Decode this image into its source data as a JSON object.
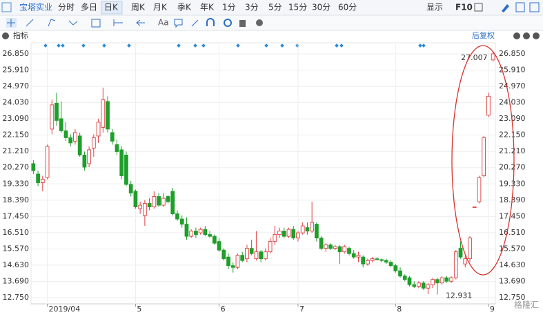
{
  "ui": {
    "stock": "宝塔实业",
    "tabs": [
      "分时",
      "多日",
      "日K",
      "周K",
      "月K",
      "季K",
      "年K",
      "1分",
      "3分",
      "5分",
      "15分",
      "30分",
      "60分"
    ],
    "display": "显示",
    "f10": "F10",
    "indicator": "指标",
    "adjust": "后复权",
    "watermark": "格隆汇"
  },
  "chart_data": {
    "type": "candlestick",
    "categories": [
      null,
      null,
      null,
      "2019/04",
      null,
      null,
      null,
      null,
      null,
      null,
      null,
      null,
      null,
      null,
      null,
      null,
      null,
      null,
      null,
      null,
      null,
      null,
      "5",
      null,
      null,
      null,
      null,
      null,
      null,
      null,
      null,
      null,
      null,
      null,
      null,
      null,
      null,
      null,
      null,
      null,
      "6",
      null,
      null,
      null,
      null,
      null,
      null,
      null,
      null,
      null,
      null,
      null,
      null,
      null,
      null,
      null,
      null,
      "7",
      null,
      null,
      null,
      null,
      null,
      null,
      null,
      null,
      null,
      null,
      null,
      null,
      null,
      null,
      null,
      null,
      null,
      null,
      null,
      null,
      "8",
      null,
      null,
      null,
      null,
      null,
      null,
      null,
      null,
      null,
      null,
      null,
      null,
      null,
      null,
      null,
      null,
      null,
      null,
      null,
      "9",
      null
    ],
    "series": [
      {
        "up_color": "#e03c3c",
        "down_color": "#1e9e2a",
        "open": [
          20.5,
          19.9,
          19.4,
          19.7,
          22.5,
          24.0,
          23.1,
          22.4,
          22.0,
          21.8,
          22.1,
          21.0,
          20.5,
          21.4,
          22.1,
          22.6,
          24.1,
          22.3,
          21.6,
          21.3,
          21.0,
          19.3,
          18.9,
          17.9,
          17.5,
          18.2,
          18.0,
          18.6,
          18.1,
          18.6,
          18.9,
          17.6,
          17.3,
          17.0,
          16.3,
          16.6,
          16.5,
          16.7,
          16.4,
          16.3,
          16.0,
          15.5,
          15.1,
          14.6,
          14.5,
          15.2,
          15.0,
          15.6,
          15.0,
          15.4,
          15.0,
          15.4,
          16.0,
          16.4,
          16.6,
          16.3,
          16.7,
          16.2,
          16.5,
          16.8,
          16.6,
          17.0,
          16.2,
          15.6,
          15.8,
          15.6,
          15.7,
          15.4,
          15.6,
          15.3,
          15.1,
          15.1,
          14.7,
          14.9,
          15.0,
          14.95,
          14.9,
          14.8,
          14.6,
          14.3,
          14.0,
          13.9,
          13.5,
          13.4,
          13.6,
          13.3,
          13.5,
          13.8,
          13.6,
          13.9,
          13.7,
          13.9,
          15.6,
          14.7,
          15.0,
          18.0,
          18.3,
          19.8,
          23.3,
          26.5
        ],
        "high": [
          20.7,
          20.1,
          19.8,
          21.6,
          24.2,
          24.6,
          24.1,
          22.9,
          22.2,
          22.5,
          22.3,
          21.2,
          21.5,
          22.2,
          23.1,
          24.9,
          24.4,
          22.5,
          21.9,
          21.5,
          21.2,
          19.5,
          19.0,
          18.3,
          18.4,
          18.5,
          18.9,
          18.8,
          18.8,
          18.7,
          19.1,
          17.8,
          17.5,
          17.4,
          16.7,
          16.8,
          16.8,
          16.9,
          16.6,
          16.4,
          16.2,
          15.6,
          15.3,
          14.8,
          15.3,
          15.4,
          15.8,
          16.1,
          16.6,
          15.5,
          15.6,
          16.2,
          16.9,
          16.8,
          16.8,
          16.8,
          16.9,
          16.6,
          17.1,
          17.1,
          18.3,
          17.1,
          16.3,
          15.9,
          15.9,
          15.8,
          15.8,
          15.8,
          15.7,
          15.5,
          15.4,
          15.2,
          15.0,
          15.1,
          15.1,
          15.0,
          15.0,
          14.9,
          14.7,
          14.5,
          14.1,
          14.0,
          13.7,
          13.7,
          13.7,
          13.6,
          13.9,
          13.9,
          14.0,
          14.0,
          14.0,
          15.5,
          16.0,
          15.2,
          16.3,
          18.0,
          19.8,
          22.1,
          24.6,
          27.007
        ],
        "low": [
          19.9,
          19.2,
          18.9,
          19.6,
          22.2,
          22.7,
          22.3,
          21.8,
          21.5,
          21.6,
          20.9,
          20.1,
          20.3,
          20.9,
          21.7,
          22.3,
          22.3,
          21.6,
          21.0,
          19.6,
          19.2,
          18.6,
          17.9,
          17.6,
          16.9,
          17.8,
          17.9,
          18.0,
          18.0,
          18.2,
          17.5,
          17.2,
          16.8,
          16.1,
          16.2,
          16.2,
          16.4,
          16.3,
          16.2,
          15.8,
          15.4,
          14.9,
          14.4,
          14.2,
          14.4,
          14.8,
          14.8,
          15.2,
          14.9,
          14.8,
          14.9,
          15.3,
          15.8,
          16.2,
          16.2,
          16.2,
          16.1,
          16.0,
          16.4,
          16.4,
          16.5,
          16.0,
          15.5,
          15.4,
          15.5,
          15.5,
          14.7,
          15.3,
          15.2,
          15.0,
          14.8,
          14.5,
          14.6,
          14.8,
          14.9,
          14.8,
          14.7,
          14.5,
          14.2,
          13.9,
          13.7,
          13.4,
          13.3,
          13.3,
          13.2,
          12.95,
          13.3,
          12.931,
          13.5,
          13.6,
          13.6,
          13.8,
          15.0,
          14.5,
          14.8,
          18.0,
          18.2,
          19.7,
          23.2,
          26.4
        ],
        "close": [
          20.1,
          19.4,
          19.6,
          21.5,
          23.9,
          23.0,
          22.4,
          22.0,
          21.7,
          22.3,
          21.0,
          20.3,
          21.3,
          22.0,
          22.9,
          24.2,
          22.5,
          21.8,
          21.2,
          19.8,
          19.3,
          18.8,
          18.0,
          18.1,
          18.2,
          18.0,
          18.6,
          18.1,
          18.5,
          18.3,
          17.6,
          17.3,
          17.0,
          16.3,
          16.6,
          16.4,
          16.7,
          16.4,
          16.3,
          15.9,
          15.5,
          15.0,
          14.6,
          14.5,
          15.2,
          14.9,
          15.6,
          15.3,
          15.4,
          15.0,
          15.4,
          16.0,
          16.4,
          16.6,
          16.3,
          16.7,
          16.2,
          16.5,
          16.9,
          16.6,
          17.1,
          16.2,
          15.6,
          15.8,
          15.6,
          15.7,
          15.4,
          15.7,
          15.3,
          15.1,
          15.2,
          14.7,
          14.9,
          15.0,
          14.95,
          14.9,
          14.8,
          14.6,
          14.3,
          14.0,
          13.8,
          13.5,
          13.4,
          13.6,
          13.3,
          13.5,
          13.8,
          13.6,
          13.9,
          13.7,
          13.9,
          15.4,
          15.1,
          15.0,
          16.2,
          18.0,
          19.7,
          22.0,
          24.4,
          26.85
        ]
      }
    ],
    "annotations": [
      {
        "text": "27.007",
        "index": 99,
        "value": 27.007
      },
      {
        "text": "12.931",
        "index": 87,
        "value": 12.931
      }
    ],
    "ylim": [
      12.39,
      27.49
    ],
    "yticks": [
      {
        "value": 12.75,
        "label": "12.750"
      },
      {
        "value": 13.69,
        "label": "13.690"
      },
      {
        "value": 14.63,
        "label": "14.630"
      },
      {
        "value": 15.57,
        "label": "15.570"
      },
      {
        "value": 16.51,
        "label": "16.510"
      },
      {
        "value": 17.45,
        "label": "17.450"
      },
      {
        "value": 18.39,
        "label": "18.390"
      },
      {
        "value": 19.33,
        "label": "19.330"
      },
      {
        "value": 20.27,
        "label": "20.270"
      },
      {
        "value": 21.21,
        "label": "21.210"
      },
      {
        "value": 22.15,
        "label": "22.150"
      },
      {
        "value": 23.09,
        "label": "23.090"
      },
      {
        "value": 24.03,
        "label": "24.030"
      },
      {
        "value": 24.97,
        "label": "24.970"
      },
      {
        "value": 25.91,
        "label": "25.910"
      },
      {
        "value": 26.85,
        "label": "26.850"
      }
    ],
    "grid": true
  }
}
